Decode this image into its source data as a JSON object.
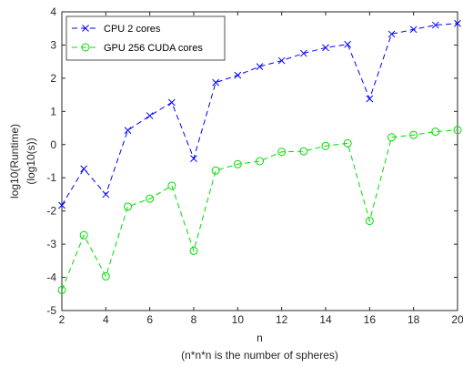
{
  "chart_data": {
    "type": "line",
    "xlabel": "n",
    "xlabel_sub": "(n*n*n is the number of spheres)",
    "ylabel": "log10(Runtime)",
    "ylabel_sub": "(log10(s))",
    "xlim": [
      2,
      20
    ],
    "ylim": [
      -5,
      4
    ],
    "xticks": [
      2,
      4,
      6,
      8,
      10,
      12,
      14,
      16,
      18,
      20
    ],
    "yticks": [
      -5,
      -4,
      -3,
      -2,
      -1,
      0,
      1,
      2,
      3,
      4
    ],
    "grid": false,
    "legend_position": "top-left",
    "x": [
      2,
      3,
      4,
      5,
      6,
      7,
      8,
      9,
      10,
      11,
      12,
      13,
      14,
      15,
      16,
      17,
      18,
      19,
      20
    ],
    "series": [
      {
        "name": "CPU 2 cores",
        "color": "#0000ff",
        "marker": "x",
        "line_style": "dashed",
        "values": [
          -1.83,
          -0.73,
          -1.5,
          0.43,
          0.87,
          1.27,
          -0.42,
          1.87,
          2.09,
          2.35,
          2.53,
          2.75,
          2.92,
          3.02,
          1.38,
          3.33,
          3.47,
          3.6,
          3.65
        ]
      },
      {
        "name": "GPU 256 CUDA cores",
        "color": "#00dd00",
        "marker": "circle",
        "line_style": "dashed",
        "values": [
          -4.38,
          -2.73,
          -3.97,
          -1.87,
          -1.63,
          -1.24,
          -3.2,
          -0.78,
          -0.59,
          -0.5,
          -0.22,
          -0.2,
          -0.04,
          0.04,
          -2.3,
          0.22,
          0.29,
          0.39,
          0.44
        ]
      }
    ]
  }
}
